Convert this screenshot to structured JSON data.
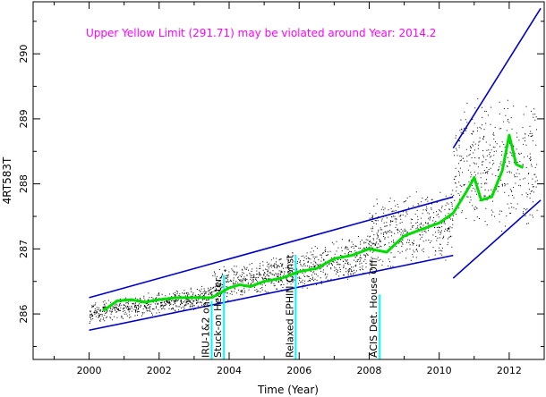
{
  "chart_data": {
    "type": "scatter",
    "title": "",
    "xlabel": "Time (Year)",
    "ylabel": "4RT583T",
    "xlim": [
      1998.4,
      2013.0
    ],
    "ylim": [
      285.3,
      290.8
    ],
    "x_ticks": [
      2000,
      2002,
      2004,
      2006,
      2008,
      2010,
      2012
    ],
    "x_tick_labels": [
      "2000",
      "2002",
      "2004",
      "2006",
      "2008",
      "2010",
      "2012"
    ],
    "y_ticks": [
      286,
      287,
      288,
      289,
      290
    ],
    "y_tick_labels": [
      "286",
      "287",
      "288",
      "289",
      "290"
    ],
    "annotation": "Upper Yellow  Limit (291.71) may be violated around Year: 2014.2",
    "colors": {
      "scatter": "#000000",
      "smooth": "#00dd00",
      "envelope": "#0000cc",
      "events": "#00ffff",
      "annotation": "#ff00ff"
    },
    "series": [
      {
        "role": "smoothed-trend",
        "x": [
          2000.4,
          2000.8,
          2001.2,
          2001.6,
          2002.0,
          2002.5,
          2003.0,
          2003.5,
          2004.0,
          2004.3,
          2004.6,
          2005.0,
          2005.5,
          2006.0,
          2006.5,
          2007.0,
          2007.5,
          2008.0,
          2008.5,
          2009.0,
          2009.5,
          2010.0,
          2010.4,
          2010.8,
          2011.0,
          2011.2,
          2011.5,
          2011.8,
          2012.0,
          2012.2,
          2012.4
        ],
        "y": [
          286.05,
          286.2,
          286.22,
          286.18,
          286.22,
          286.25,
          286.25,
          286.25,
          286.4,
          286.45,
          286.42,
          286.5,
          286.55,
          286.65,
          286.7,
          286.85,
          286.9,
          287.0,
          286.95,
          287.2,
          287.3,
          287.4,
          287.55,
          287.9,
          288.1,
          287.75,
          287.8,
          288.2,
          288.75,
          288.3,
          288.25
        ]
      },
      {
        "role": "envelope-upper-early",
        "x": [
          2000.0,
          2010.4
        ],
        "y": [
          286.25,
          287.8
        ]
      },
      {
        "role": "envelope-lower-early",
        "x": [
          2000.0,
          2010.4
        ],
        "y": [
          285.75,
          286.9
        ]
      },
      {
        "role": "envelope-upper-late",
        "x": [
          2010.4,
          2012.9
        ],
        "y": [
          288.55,
          290.7
        ]
      },
      {
        "role": "envelope-lower-late",
        "x": [
          2010.4,
          2012.9
        ],
        "y": [
          286.55,
          287.75
        ]
      }
    ],
    "events": [
      {
        "x": 2003.5,
        "y_top": 286.2,
        "label": "IRU-1&2 on"
      },
      {
        "x": 2003.85,
        "y_top": 286.6,
        "label": "Stuck-on Heater"
      },
      {
        "x": 2005.9,
        "y_top": 286.9,
        "label": "Relaxed EPHIN Const."
      },
      {
        "x": 2008.3,
        "y_top": 286.3,
        "label": "ACIS Det. House Off"
      }
    ],
    "scatter_bands": [
      {
        "x0": 2000.0,
        "x1": 2003.5,
        "center": 286.15,
        "spread": 0.13
      },
      {
        "x0": 2003.5,
        "x1": 2006.0,
        "center": 286.55,
        "spread": 0.2
      },
      {
        "x0": 2006.0,
        "x1": 2008.0,
        "center": 286.8,
        "spread": 0.25
      },
      {
        "x0": 2008.0,
        "x1": 2010.4,
        "center": 287.3,
        "spread": 0.45
      },
      {
        "x0": 2010.4,
        "x1": 2012.8,
        "center": 288.3,
        "spread": 0.75
      }
    ]
  }
}
